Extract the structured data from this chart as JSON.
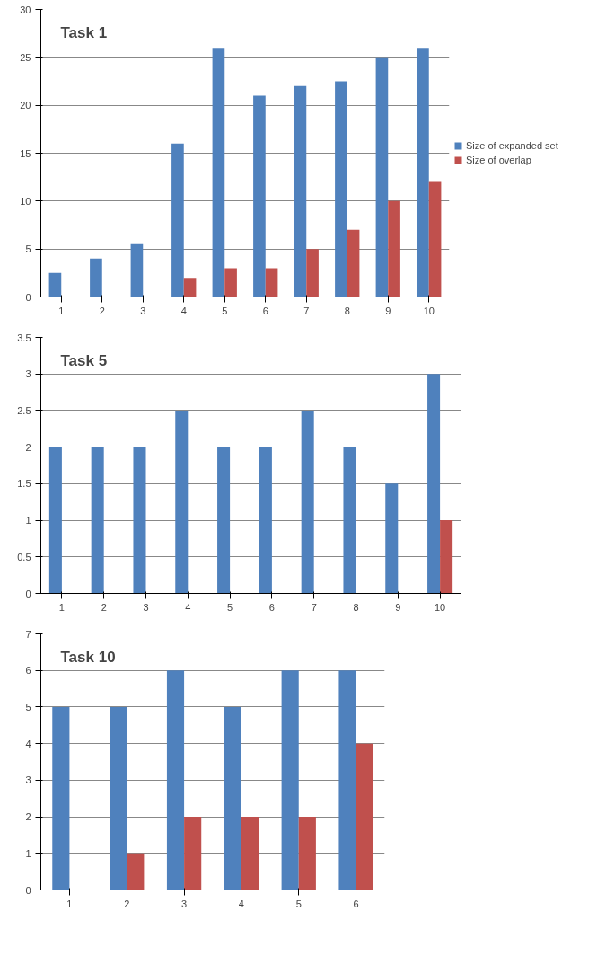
{
  "chart_data": [
    {
      "type": "bar",
      "title": "Task 1",
      "categories": [
        "1",
        "2",
        "3",
        "4",
        "5",
        "6",
        "7",
        "8",
        "9",
        "10"
      ],
      "series": [
        {
          "name": "Size of expanded set",
          "color": "#4f81bd",
          "values": [
            2.5,
            4,
            5.5,
            16,
            26,
            21,
            22,
            22.5,
            25,
            26
          ]
        },
        {
          "name": "Size of overlap",
          "color": "#c0504d",
          "values": [
            null,
            null,
            null,
            2,
            3,
            3,
            5,
            7,
            10,
            12
          ]
        }
      ],
      "ylim": [
        0,
        30
      ],
      "yticks": [
        0,
        5,
        10,
        15,
        20,
        25,
        30
      ],
      "grid": "y",
      "legend": "right"
    },
    {
      "type": "bar",
      "title": "Task 5",
      "categories": [
        "1",
        "2",
        "3",
        "4",
        "5",
        "6",
        "7",
        "8",
        "9",
        "10"
      ],
      "series": [
        {
          "color": "#4f81bd",
          "values": [
            2,
            2,
            2,
            2.5,
            2,
            2,
            2.5,
            2,
            1.5,
            3
          ]
        },
        {
          "color": "#c0504d",
          "values": [
            null,
            null,
            null,
            null,
            null,
            null,
            null,
            null,
            null,
            1
          ]
        }
      ],
      "ylim": [
        0,
        3.5
      ],
      "yticks": [
        0,
        0.5,
        1,
        1.5,
        2,
        2.5,
        3,
        3.5
      ],
      "grid": "y"
    },
    {
      "type": "bar",
      "title": "Task 10",
      "categories": [
        "1",
        "2",
        "3",
        "4",
        "5",
        "6"
      ],
      "series": [
        {
          "color": "#4f81bd",
          "values": [
            5,
            5,
            6,
            5,
            6,
            6
          ]
        },
        {
          "color": "#c0504d",
          "values": [
            null,
            1,
            2,
            2,
            2,
            4
          ]
        }
      ],
      "ylim": [
        0,
        7
      ],
      "yticks": [
        0,
        1,
        2,
        3,
        4,
        5,
        6,
        7
      ],
      "grid": "y"
    }
  ]
}
